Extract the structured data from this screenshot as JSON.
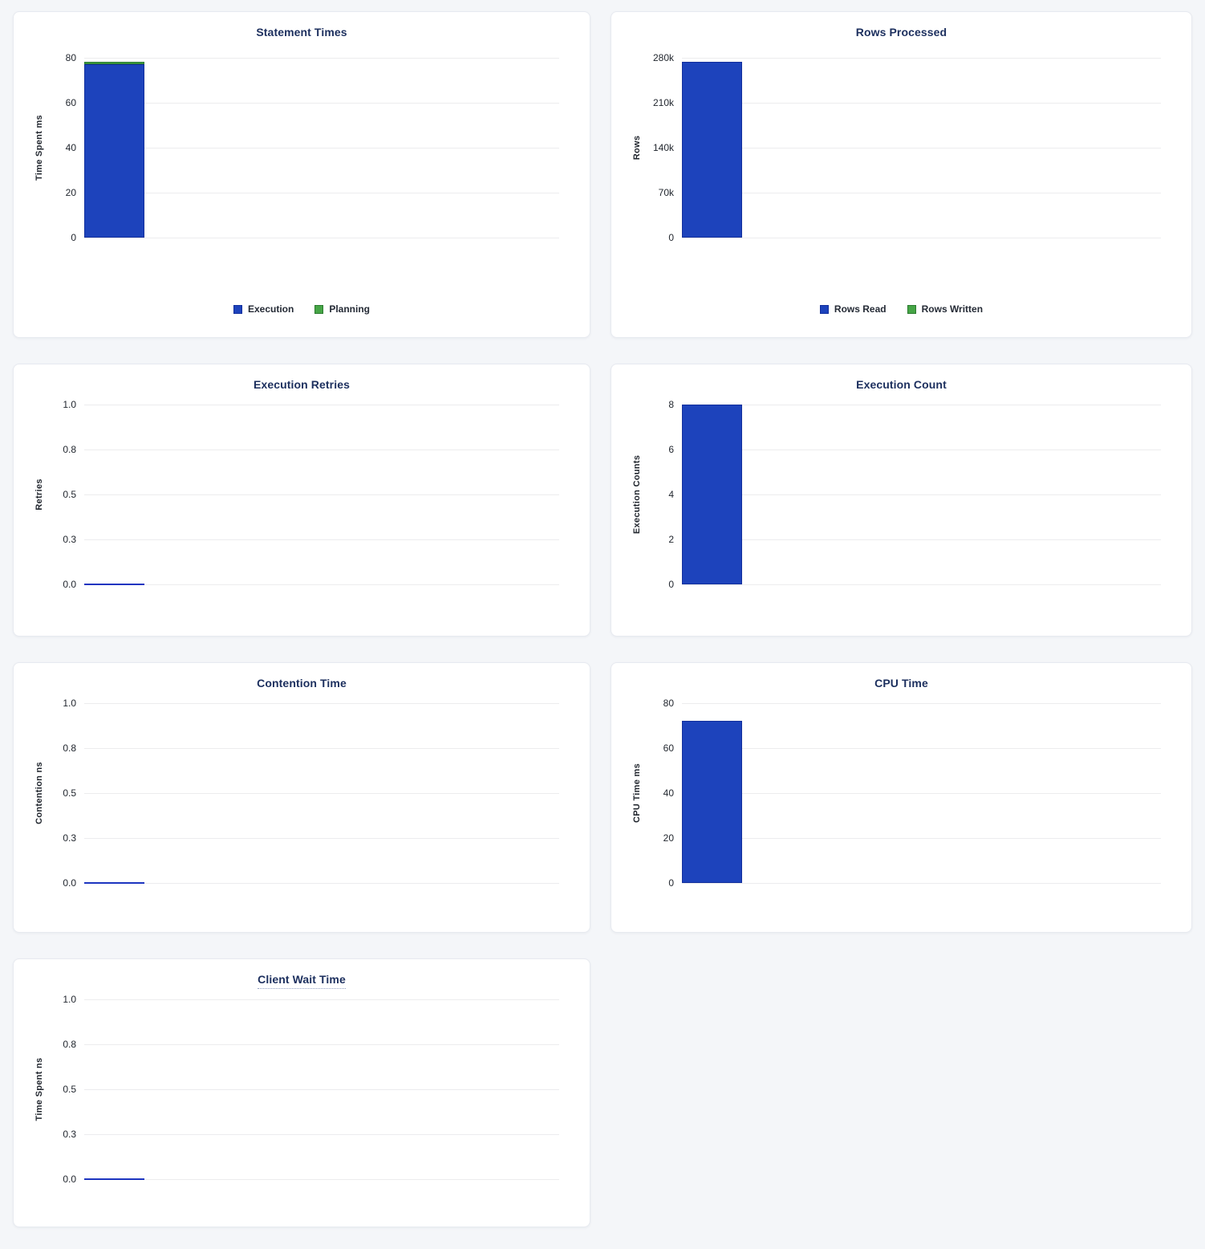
{
  "page": {
    "background_color": "#f4f6f9",
    "card_background_color": "#ffffff",
    "title_color": "#1c2f5e",
    "gridline_color": "#ececee",
    "zero_line_color": "#1d35c0"
  },
  "chart_data": [
    {
      "id": "statement-times",
      "type": "bar",
      "title": "Statement Times",
      "title_tooltip_underline": false,
      "categories": [
        ""
      ],
      "stacked": true,
      "series": [
        {
          "name": "Execution",
          "values": [
            77
          ],
          "color": "#1d43bc",
          "border_color": "#122f9c"
        },
        {
          "name": "Planning",
          "values": [
            1.4
          ],
          "color": "#46a546",
          "border_color": "#2b7a2f"
        }
      ],
      "xlabel": "",
      "ylabel": "Time Spent ms",
      "ylim": [
        0,
        80
      ],
      "yticks_top_to_bottom": [
        "80",
        "60",
        "40",
        "20",
        "0"
      ],
      "grid": true,
      "legend": {
        "position": "bottom",
        "entries": [
          {
            "label": "Execution",
            "color": "#1d43bc",
            "border_color": "#122f9c"
          },
          {
            "label": "Planning",
            "color": "#46a546",
            "border_color": "#2b7a2f"
          }
        ]
      }
    },
    {
      "id": "rows-processed",
      "type": "bar",
      "title": "Rows Processed",
      "title_tooltip_underline": false,
      "categories": [
        ""
      ],
      "stacked": true,
      "series": [
        {
          "name": "Rows Read",
          "values": [
            274000
          ],
          "color": "#1d43bc",
          "border_color": "#122f9c"
        },
        {
          "name": "Rows Written",
          "values": [
            0
          ],
          "color": "#46a546",
          "border_color": "#2b7a2f"
        }
      ],
      "xlabel": "",
      "ylabel": "Rows",
      "ylim": [
        0,
        280000
      ],
      "yticks_top_to_bottom": [
        "280k",
        "210k",
        "140k",
        "70k",
        "0"
      ],
      "grid": true,
      "legend": {
        "position": "bottom",
        "entries": [
          {
            "label": "Rows Read",
            "color": "#1d43bc",
            "border_color": "#122f9c"
          },
          {
            "label": "Rows Written",
            "color": "#46a546",
            "border_color": "#2b7a2f"
          }
        ]
      }
    },
    {
      "id": "execution-retries",
      "type": "bar",
      "title": "Execution Retries",
      "title_tooltip_underline": false,
      "categories": [
        ""
      ],
      "stacked": false,
      "series": [
        {
          "name": "Retries",
          "values": [
            0
          ],
          "color": "#1d43bc",
          "border_color": "#122f9c"
        }
      ],
      "xlabel": "",
      "ylabel": "Retries",
      "ylim": [
        0,
        1
      ],
      "yticks_top_to_bottom": [
        "1.0",
        "0.8",
        "0.5",
        "0.3",
        "0.0"
      ],
      "grid": true,
      "legend": null
    },
    {
      "id": "execution-count",
      "type": "bar",
      "title": "Execution Count",
      "title_tooltip_underline": false,
      "categories": [
        ""
      ],
      "stacked": false,
      "series": [
        {
          "name": "Execution Count",
          "values": [
            8
          ],
          "color": "#1d43bc",
          "border_color": "#122f9c"
        }
      ],
      "xlabel": "",
      "ylabel": "Execution Counts",
      "ylim": [
        0,
        8
      ],
      "yticks_top_to_bottom": [
        "8",
        "6",
        "4",
        "2",
        "0"
      ],
      "grid": true,
      "legend": null
    },
    {
      "id": "contention-time",
      "type": "bar",
      "title": "Contention Time",
      "title_tooltip_underline": false,
      "categories": [
        ""
      ],
      "stacked": false,
      "series": [
        {
          "name": "Contention",
          "values": [
            0
          ],
          "color": "#1d43bc",
          "border_color": "#122f9c"
        }
      ],
      "xlabel": "",
      "ylabel": "Contention ns",
      "ylim": [
        0,
        1
      ],
      "yticks_top_to_bottom": [
        "1.0",
        "0.8",
        "0.5",
        "0.3",
        "0.0"
      ],
      "grid": true,
      "legend": null
    },
    {
      "id": "cpu-time",
      "type": "bar",
      "title": "CPU Time",
      "title_tooltip_underline": false,
      "categories": [
        ""
      ],
      "stacked": false,
      "series": [
        {
          "name": "CPU Time",
          "values": [
            72
          ],
          "color": "#1d43bc",
          "border_color": "#122f9c"
        }
      ],
      "xlabel": "",
      "ylabel": "CPU Time ms",
      "ylim": [
        0,
        80
      ],
      "yticks_top_to_bottom": [
        "80",
        "60",
        "40",
        "20",
        "0"
      ],
      "grid": true,
      "legend": null
    },
    {
      "id": "client-wait-time",
      "type": "bar",
      "title": "Client Wait Time",
      "title_tooltip_underline": true,
      "categories": [
        ""
      ],
      "stacked": false,
      "series": [
        {
          "name": "Time Spent",
          "values": [
            0
          ],
          "color": "#1d43bc",
          "border_color": "#122f9c"
        }
      ],
      "xlabel": "",
      "ylabel": "Time Spent ns",
      "ylim": [
        0,
        1
      ],
      "yticks_top_to_bottom": [
        "1.0",
        "0.8",
        "0.5",
        "0.3",
        "0.0"
      ],
      "grid": true,
      "legend": null
    }
  ]
}
